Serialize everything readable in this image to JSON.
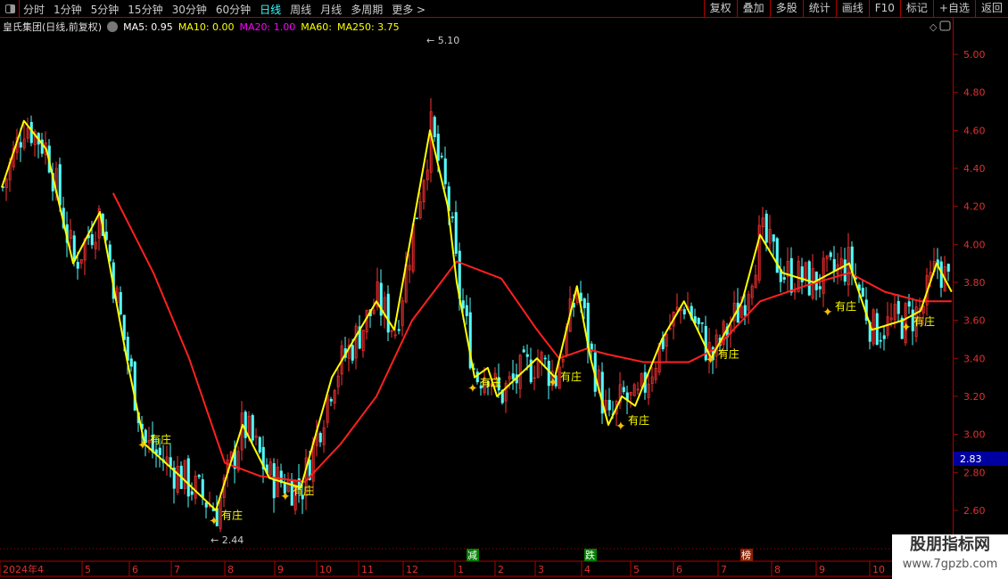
{
  "topbar": {
    "periods": [
      "分时",
      "1分钟",
      "5分钟",
      "15分钟",
      "30分钟",
      "60分钟",
      "日线",
      "周线",
      "月线",
      "多周期",
      "更多 >"
    ],
    "active_period": "日线",
    "buttons": [
      "复权",
      "叠加",
      "多股",
      "统计",
      "画线",
      "F10",
      "标记",
      "+自选",
      "返回"
    ]
  },
  "info": {
    "title": "皇氏集团(日线,前复权)",
    "ma5": "MA5: 0.95",
    "ma10": "MA10: 0.00",
    "ma20": "MA20: 1.00",
    "ma60": "MA60:",
    "ma250": "MA250: 3.75"
  },
  "colors": {
    "up": "#ff3232",
    "down": "#54fcfc",
    "ma_yellow": "#ffff00",
    "ma_red": "#ff2020",
    "axis": "#b00000",
    "price_tag": "#0000a0"
  },
  "chart_data": {
    "type": "candlestick",
    "ylim": [
      2.5,
      5.1
    ],
    "yticks": [
      "5.00",
      "4.80",
      "4.60",
      "4.40",
      "4.20",
      "4.00",
      "3.80",
      "3.60",
      "3.40",
      "3.20",
      "3.00",
      "2.80",
      "2.60"
    ],
    "x_labels": [
      "2024年4",
      "5",
      "6",
      "7",
      "8",
      "9",
      "10",
      "11",
      "12",
      "1",
      "2",
      "3",
      "4",
      "5",
      "6",
      "7",
      "8",
      "9",
      "10"
    ],
    "ma_yellow": [
      [
        0,
        4.3
      ],
      [
        3.1,
        4.65
      ],
      [
        6.25,
        4.5
      ],
      [
        10,
        3.9
      ],
      [
        13.75,
        4.17
      ],
      [
        17.5,
        3.4
      ],
      [
        20,
        2.95
      ],
      [
        25,
        2.78
      ],
      [
        30,
        2.6
      ],
      [
        33.75,
        3.05
      ],
      [
        37.5,
        2.77
      ],
      [
        41.9,
        2.72
      ],
      [
        46.25,
        3.3
      ],
      [
        52.5,
        3.7
      ],
      [
        55,
        3.55
      ],
      [
        60,
        4.6
      ],
      [
        62.5,
        4.2
      ],
      [
        63.75,
        3.8
      ],
      [
        66.25,
        3.3
      ],
      [
        68.1,
        3.35
      ],
      [
        69.4,
        3.2
      ],
      [
        75,
        3.4
      ],
      [
        77.5,
        3.3
      ],
      [
        80.6,
        3.78
      ],
      [
        82.5,
        3.4
      ],
      [
        85,
        3.05
      ],
      [
        86.9,
        3.2
      ],
      [
        88.75,
        3.15
      ],
      [
        92.5,
        3.5
      ],
      [
        95.6,
        3.7
      ],
      [
        99.4,
        3.4
      ],
      [
        103.75,
        3.7
      ],
      [
        106.25,
        4.05
      ],
      [
        109.4,
        3.85
      ],
      [
        113.75,
        3.8
      ],
      [
        118.75,
        3.9
      ],
      [
        121.9,
        3.55
      ],
      [
        126.25,
        3.6
      ],
      [
        128.75,
        3.65
      ],
      [
        131,
        3.9
      ],
      [
        133.1,
        3.75
      ]
    ],
    "ma_red": [
      [
        15.6,
        4.27
      ],
      [
        21.25,
        3.85
      ],
      [
        26.25,
        3.4
      ],
      [
        31.25,
        2.85
      ],
      [
        36.25,
        2.78
      ],
      [
        42.5,
        2.75
      ],
      [
        47.5,
        2.95
      ],
      [
        52.5,
        3.2
      ],
      [
        57.5,
        3.6
      ],
      [
        63.75,
        3.91
      ],
      [
        70,
        3.82
      ],
      [
        75,
        3.55
      ],
      [
        78.1,
        3.4
      ],
      [
        81.9,
        3.45
      ],
      [
        85,
        3.42
      ],
      [
        90,
        3.38
      ],
      [
        96.25,
        3.38
      ],
      [
        100,
        3.45
      ],
      [
        106.25,
        3.7
      ],
      [
        112.5,
        3.78
      ],
      [
        118.75,
        3.85
      ],
      [
        123.75,
        3.75
      ],
      [
        128.75,
        3.7
      ],
      [
        133.1,
        3.7
      ]
    ],
    "high_label": "5.10",
    "low_label": "2.44",
    "last_price": "2.83",
    "annotation": "有庄",
    "annotations_at": [
      [
        20,
        2.95
      ],
      [
        30,
        2.55
      ],
      [
        40,
        2.68
      ],
      [
        66.25,
        3.25
      ],
      [
        77.5,
        3.28
      ],
      [
        87,
        3.05
      ],
      [
        99.6,
        3.4
      ],
      [
        116,
        3.65
      ],
      [
        127,
        3.57
      ]
    ],
    "event_markers": [
      {
        "label": "减",
        "color": "#008000"
      },
      {
        "label": "跌",
        "color": "#008000"
      },
      {
        "label": "榜",
        "color": "#8b2000"
      }
    ]
  },
  "watermark": {
    "line1": "股朋指标网",
    "line2": "www.7gpzb.com"
  }
}
